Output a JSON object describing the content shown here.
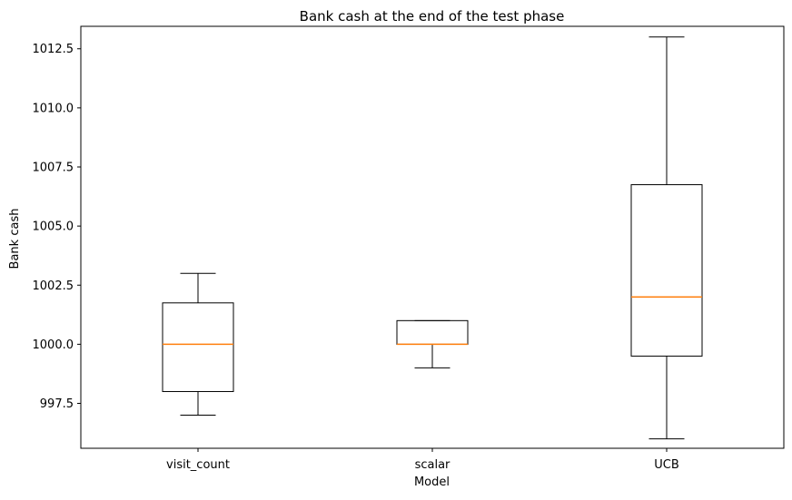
{
  "chart_data": {
    "type": "box",
    "title": "Bank cash at the end of the test phase",
    "xlabel": "Model",
    "ylabel": "Bank cash",
    "categories": [
      "visit_count",
      "scalar",
      "UCB"
    ],
    "boxes": [
      {
        "whisker_low": 997.0,
        "q1": 998.0,
        "median": 1000.0,
        "q3": 1001.75,
        "whisker_high": 1003.0
      },
      {
        "whisker_low": 999.0,
        "q1": 1000.0,
        "median": 1000.0,
        "q3": 1001.0,
        "whisker_high": 1001.0
      },
      {
        "whisker_low": 996.0,
        "q1": 999.5,
        "median": 1002.0,
        "q3": 1006.75,
        "whisker_high": 1013.0
      }
    ],
    "ylim": [
      995.6,
      1013.45
    ],
    "yticks": [
      997.5,
      1000.0,
      1002.5,
      1005.0,
      1007.5,
      1010.0,
      1012.5
    ],
    "ytick_labels": [
      "997.5",
      "1000.0",
      "1002.5",
      "1005.0",
      "1007.5",
      "1010.0",
      "1012.5"
    ],
    "grid": false,
    "colors": {
      "box": "#000000",
      "median": "#ff7f0e",
      "axes": "#000000"
    }
  }
}
